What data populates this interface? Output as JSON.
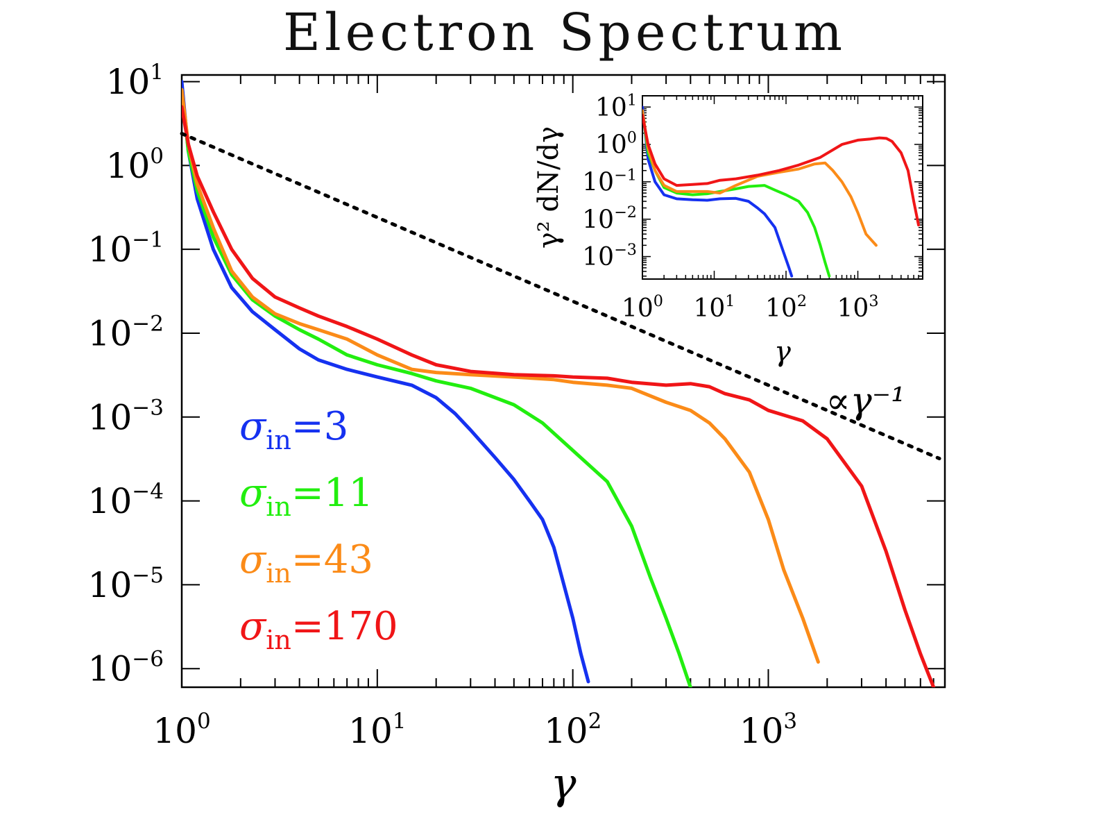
{
  "chart_data": {
    "title": "Electron Spectrum",
    "main": {
      "type": "line",
      "xlabel": "γ",
      "ylabel": "",
      "xscale": "log",
      "yscale": "log",
      "xlim": [
        1,
        8000
      ],
      "ylim": [
        6e-07,
        12
      ],
      "x_ticks": [
        {
          "base": "10",
          "exp": "0",
          "value": 1
        },
        {
          "base": "10",
          "exp": "1",
          "value": 10
        },
        {
          "base": "10",
          "exp": "2",
          "value": 100
        },
        {
          "base": "10",
          "exp": "3",
          "value": 1000
        }
      ],
      "y_ticks": [
        {
          "base": "10",
          "exp": "1",
          "value": 10
        },
        {
          "base": "10",
          "exp": "0",
          "value": 1
        },
        {
          "base": "10",
          "exp": "−1",
          "value": 0.1
        },
        {
          "base": "10",
          "exp": "−2",
          "value": 0.01
        },
        {
          "base": "10",
          "exp": "−3",
          "value": 0.001
        },
        {
          "base": "10",
          "exp": "−4",
          "value": 0.0001
        },
        {
          "base": "10",
          "exp": "−5",
          "value": 1e-05
        },
        {
          "base": "10",
          "exp": "−6",
          "value": 1e-06
        }
      ],
      "series": [
        {
          "name": "σin=3",
          "color": "#1531f0",
          "x": [
            1.0,
            1.08,
            1.2,
            1.45,
            1.8,
            2.3,
            3.0,
            4.0,
            5.0,
            7.0,
            10.0,
            15.0,
            20.0,
            25.0,
            30.0,
            40.0,
            50.0,
            60.0,
            70.0,
            80.0,
            90.0,
            100.0,
            110.0,
            120.0
          ],
          "y": [
            10.0,
            1.5,
            0.4,
            0.1,
            0.035,
            0.018,
            0.011,
            0.0065,
            0.0048,
            0.0037,
            0.003,
            0.0024,
            0.0017,
            0.0011,
            0.0007,
            0.00033,
            0.00018,
            0.0001,
            6e-05,
            2.8e-05,
            1e-05,
            4e-06,
            1.5e-06,
            7e-07
          ]
        },
        {
          "name": "σin=11",
          "color": "#22ee0f",
          "x": [
            1.0,
            1.08,
            1.2,
            1.45,
            1.8,
            2.3,
            3.0,
            4.0,
            5.0,
            7.0,
            10.0,
            15.0,
            20.0,
            30.0,
            50.0,
            70.0,
            100.0,
            150.0,
            200.0,
            250.0,
            300.0,
            350.0,
            400.0
          ],
          "y": [
            8.0,
            1.5,
            0.5,
            0.14,
            0.05,
            0.025,
            0.016,
            0.011,
            0.0085,
            0.0055,
            0.0042,
            0.0033,
            0.0027,
            0.0022,
            0.0014,
            0.00085,
            0.0004,
            0.00017,
            5e-05,
            1.2e-05,
            4e-06,
            1.5e-06,
            6e-07
          ]
        },
        {
          "name": "σin=43",
          "color": "#fb8b18",
          "x": [
            1.0,
            1.08,
            1.2,
            1.45,
            1.8,
            2.3,
            3.0,
            4.0,
            5.0,
            7.0,
            10.0,
            15.0,
            20.0,
            30.0,
            50.0,
            80.0,
            100.0,
            150.0,
            200.0,
            300.0,
            400.0,
            500.0,
            600.0,
            800.0,
            1000.0,
            1200.0,
            1500.0,
            1800.0
          ],
          "y": [
            8.0,
            1.8,
            0.6,
            0.18,
            0.055,
            0.027,
            0.017,
            0.013,
            0.011,
            0.0085,
            0.0055,
            0.0037,
            0.0034,
            0.0032,
            0.003,
            0.0028,
            0.0026,
            0.0024,
            0.0022,
            0.0015,
            0.0012,
            0.00085,
            0.00055,
            0.00022,
            6e-05,
            1.5e-05,
            4e-06,
            1.2e-06
          ]
        },
        {
          "name": "σin=170",
          "color": "#f01517",
          "x": [
            1.0,
            1.08,
            1.2,
            1.45,
            1.8,
            2.3,
            3.0,
            4.0,
            5.0,
            7.0,
            10.0,
            15.0,
            20.0,
            30.0,
            50.0,
            80.0,
            100.0,
            150.0,
            200.0,
            300.0,
            400.0,
            500.0,
            600.0,
            800.0,
            1000.0,
            1500.0,
            2000.0,
            3000.0,
            4000.0,
            5000.0,
            6000.0,
            7000.0
          ],
          "y": [
            5.0,
            1.8,
            0.75,
            0.28,
            0.1,
            0.045,
            0.027,
            0.02,
            0.016,
            0.012,
            0.0085,
            0.0055,
            0.0042,
            0.0035,
            0.0032,
            0.0031,
            0.003,
            0.0029,
            0.0026,
            0.0024,
            0.0025,
            0.0023,
            0.0019,
            0.0016,
            0.0012,
            0.0009,
            0.00055,
            0.00015,
            2.5e-05,
            5e-06,
            1.5e-06,
            6e-07
          ]
        }
      ],
      "reference_line": {
        "label": "∝γ⁻¹",
        "x": [
          1,
          7500
        ],
        "y": [
          2.4,
          0.00032
        ],
        "style": "dotted",
        "color": "#000000"
      }
    },
    "inset": {
      "type": "line",
      "xlabel": "γ",
      "ylabel": "γ² dN/dγ",
      "xscale": "log",
      "yscale": "log",
      "xlim": [
        1,
        8000
      ],
      "ylim": [
        0.00025,
        20
      ],
      "x_ticks": [
        {
          "base": "10",
          "exp": "0",
          "value": 1
        },
        {
          "base": "10",
          "exp": "1",
          "value": 10
        },
        {
          "base": "10",
          "exp": "2",
          "value": 100
        },
        {
          "base": "10",
          "exp": "3",
          "value": 1000
        }
      ],
      "y_ticks": [
        {
          "base": "10",
          "exp": "1",
          "value": 10
        },
        {
          "base": "10",
          "exp": "0",
          "value": 1
        },
        {
          "base": "10",
          "exp": "−1",
          "value": 0.1
        },
        {
          "base": "10",
          "exp": "−2",
          "value": 0.01
        },
        {
          "base": "10",
          "exp": "−3",
          "value": 0.001
        }
      ],
      "series": [
        {
          "name": "σin=3",
          "color": "#1531f0",
          "x": [
            1.0,
            1.2,
            1.5,
            2.0,
            3.0,
            5.0,
            8.0,
            12.0,
            20.0,
            30.0,
            40.0,
            50.0,
            70.0,
            90.0,
            110.0,
            120.0
          ],
          "y": [
            10.0,
            0.4,
            0.1,
            0.045,
            0.035,
            0.033,
            0.032,
            0.035,
            0.036,
            0.03,
            0.02,
            0.014,
            0.006,
            0.0015,
            0.0005,
            0.0003
          ]
        },
        {
          "name": "σin=11",
          "color": "#22ee0f",
          "x": [
            1.0,
            1.2,
            1.5,
            2.0,
            3.0,
            5.0,
            8.0,
            12.0,
            20.0,
            30.0,
            50.0,
            70.0,
            100.0,
            150.0,
            200.0,
            250.0,
            300.0,
            350.0,
            400.0
          ],
          "y": [
            8.0,
            0.6,
            0.2,
            0.07,
            0.05,
            0.045,
            0.048,
            0.055,
            0.065,
            0.075,
            0.08,
            0.06,
            0.045,
            0.03,
            0.015,
            0.006,
            0.002,
            0.0007,
            0.0003
          ]
        },
        {
          "name": "σin=43",
          "color": "#fb8b18",
          "x": [
            1.0,
            1.2,
            1.5,
            2.0,
            3.0,
            5.0,
            8.0,
            12.0,
            20.0,
            40.0,
            80.0,
            150.0,
            250.0,
            350.0,
            450.0,
            600.0,
            800.0,
            1000.0,
            1300.0,
            1800.0
          ],
          "y": [
            8.0,
            0.8,
            0.2,
            0.08,
            0.055,
            0.055,
            0.055,
            0.05,
            0.08,
            0.14,
            0.18,
            0.22,
            0.3,
            0.32,
            0.2,
            0.1,
            0.04,
            0.015,
            0.004,
            0.002
          ]
        },
        {
          "name": "σin=170",
          "color": "#f01517",
          "x": [
            1.0,
            1.2,
            1.5,
            2.0,
            3.0,
            5.0,
            8.0,
            12.0,
            20.0,
            40.0,
            80.0,
            150.0,
            300.0,
            600.0,
            1000.0,
            1500.0,
            2000.0,
            2500.0,
            3000.0,
            4000.0,
            5000.0,
            6000.0,
            7000.0
          ],
          "y": [
            6.0,
            1.0,
            0.3,
            0.12,
            0.08,
            0.085,
            0.09,
            0.11,
            0.12,
            0.15,
            0.2,
            0.28,
            0.45,
            1.0,
            1.3,
            1.4,
            1.5,
            1.45,
            1.2,
            0.6,
            0.2,
            0.03,
            0.007
          ]
        }
      ]
    },
    "legend": [
      {
        "symbol": "σ",
        "subscript": "in",
        "text": "=3",
        "color": "#1531f0"
      },
      {
        "symbol": "σ",
        "subscript": "in",
        "text": "=11",
        "color": "#22ee0f"
      },
      {
        "symbol": "σ",
        "subscript": "in",
        "text": "=43",
        "color": "#fb8b18"
      },
      {
        "symbol": "σ",
        "subscript": "in",
        "text": "=170",
        "color": "#f01517"
      }
    ],
    "legend_placement": "lower-left"
  }
}
